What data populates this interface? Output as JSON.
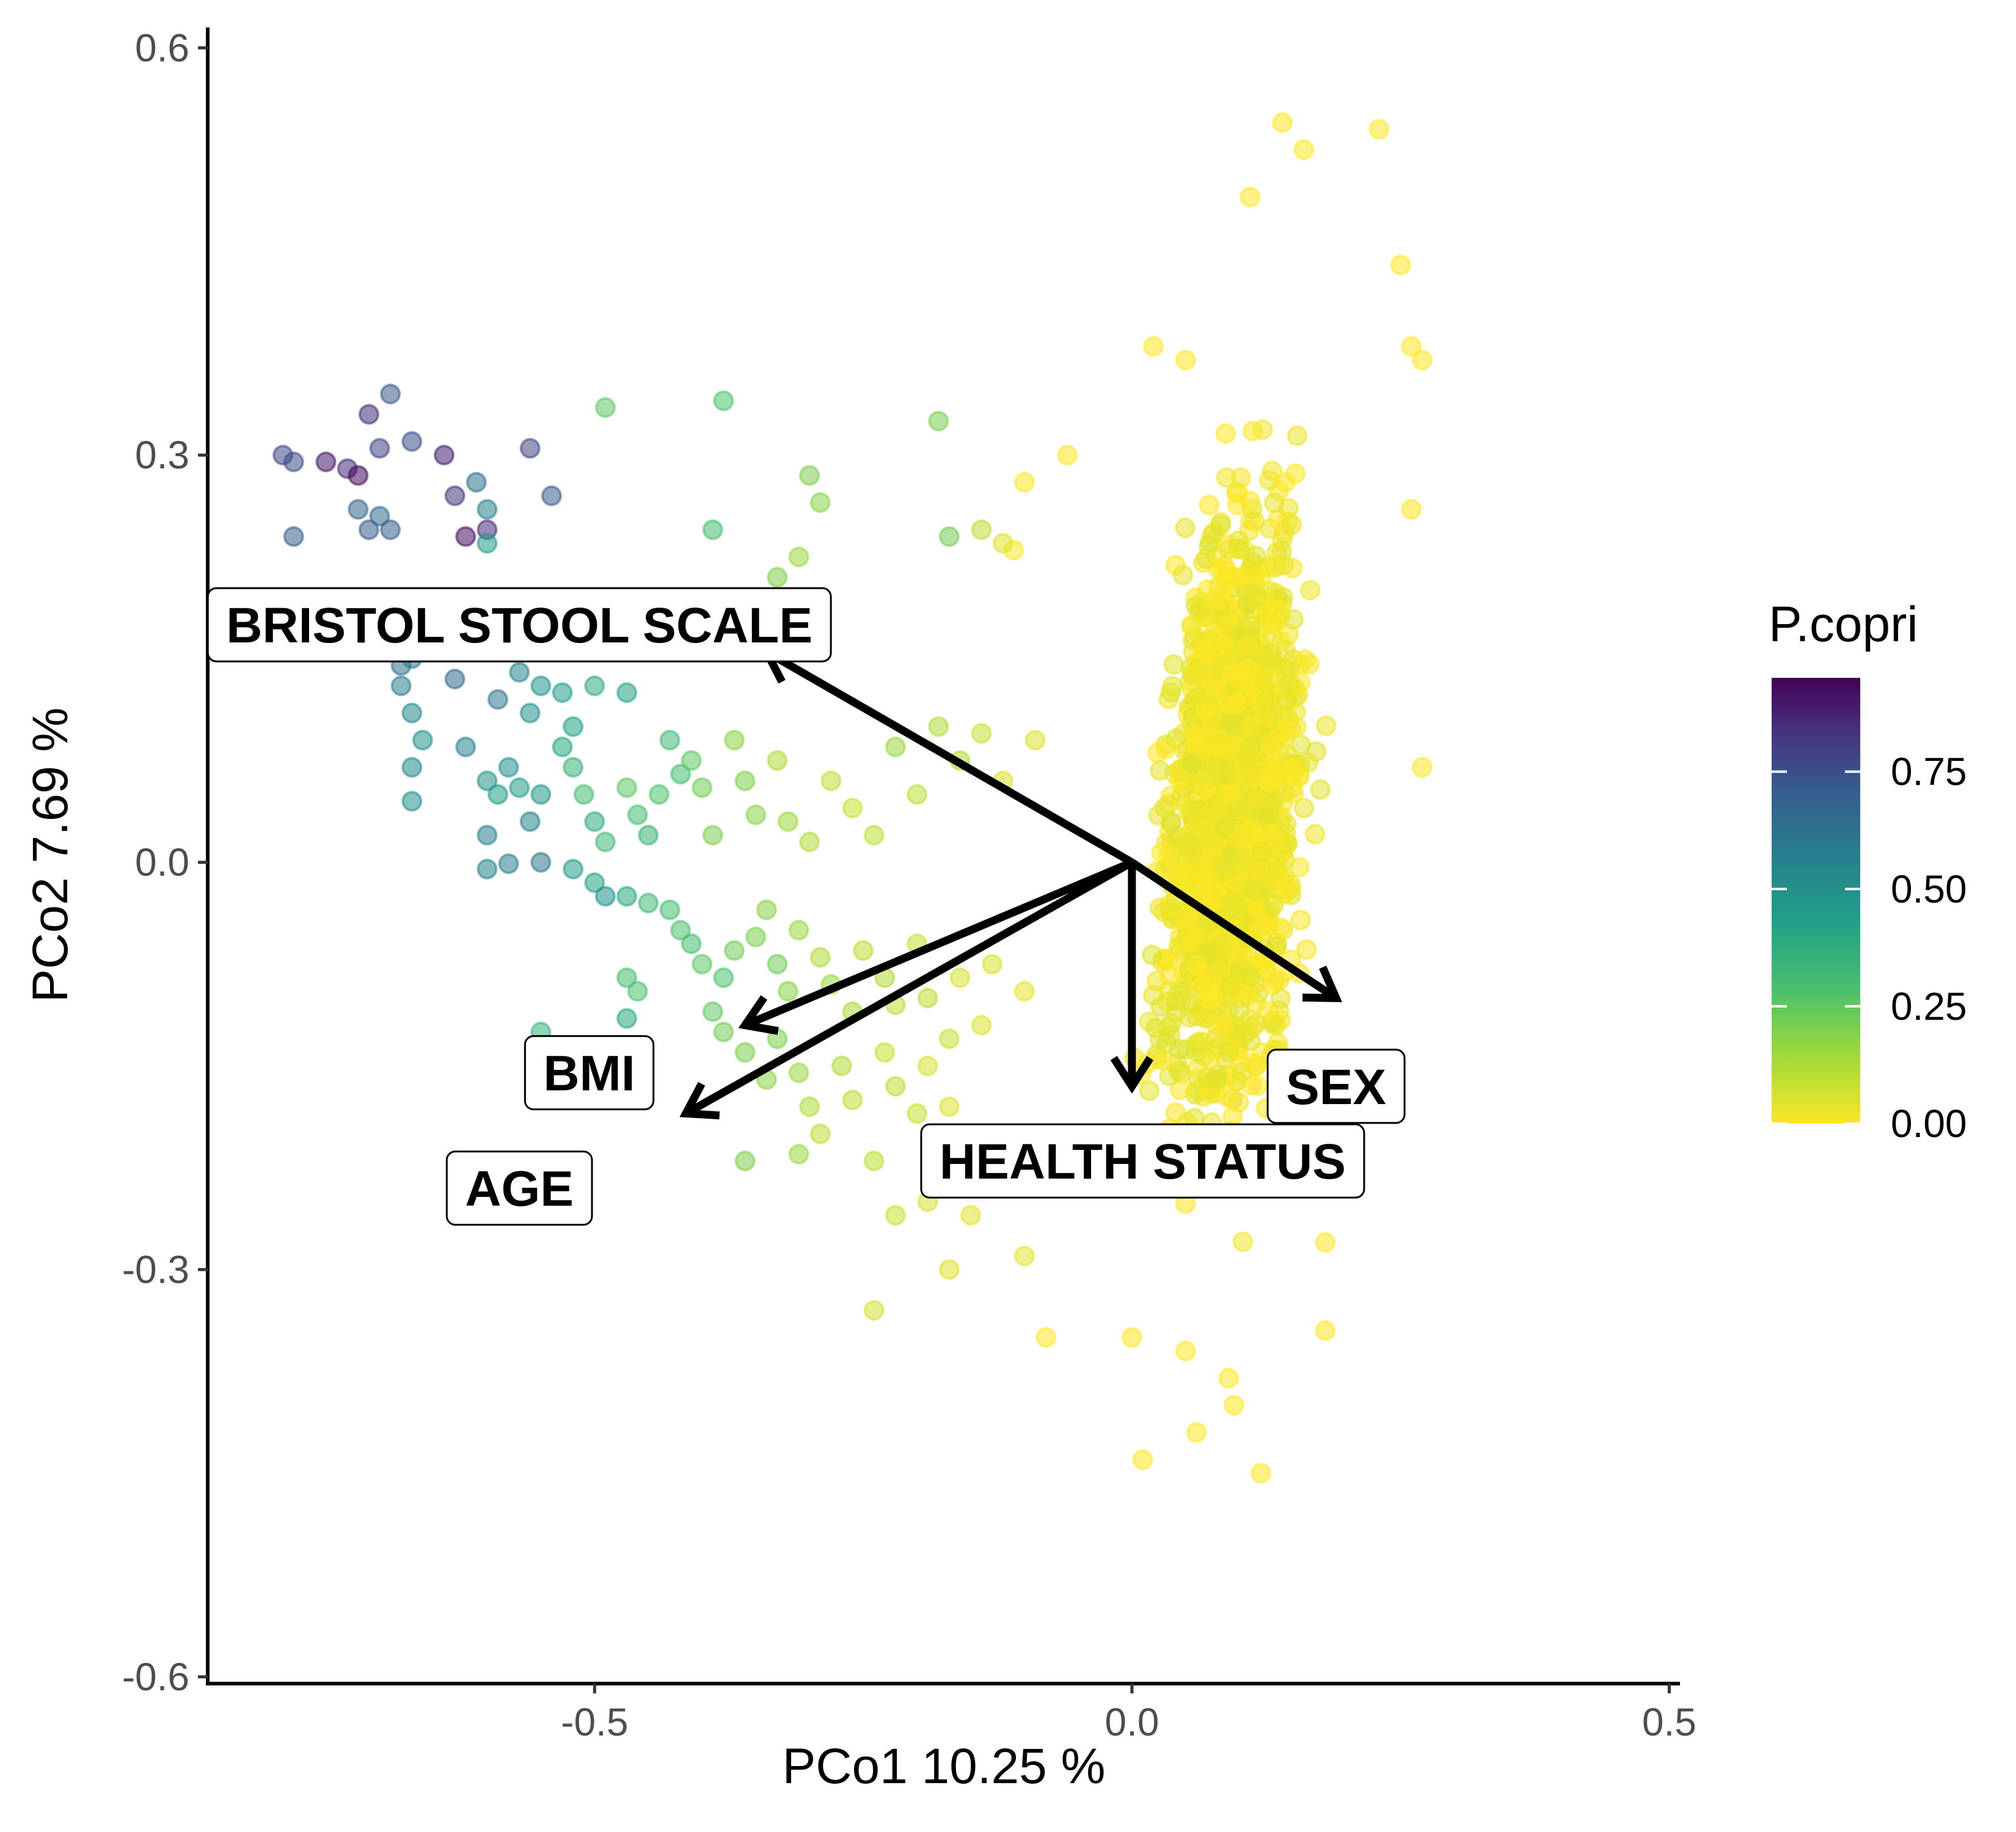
{
  "chart_data": {
    "type": "scatter",
    "title": "",
    "xlabel": "PCo1 10.25 %",
    "ylabel": "PCo2 7.69 %",
    "xlim": [
      -0.86,
      0.51
    ],
    "ylim": [
      -0.605,
      0.615
    ],
    "x_ticks": [
      {
        "value": -0.5,
        "label": "-0.5"
      },
      {
        "value": 0.0,
        "label": "0.0"
      },
      {
        "value": 0.5,
        "label": "0.5"
      }
    ],
    "y_ticks": [
      {
        "value": 0.6,
        "label": "0.6"
      },
      {
        "value": 0.3,
        "label": "0.3"
      },
      {
        "value": 0.0,
        "label": "0.0"
      },
      {
        "value": -0.3,
        "label": "-0.3"
      },
      {
        "value": -0.6,
        "label": "-0.6"
      }
    ],
    "grid": false,
    "color_scale": {
      "title": "P.copri",
      "palette": "viridis",
      "range": [
        0,
        0.95
      ],
      "ticks": [
        {
          "value": 0.0,
          "label": "0.00"
        },
        {
          "value": 0.25,
          "label": "0.25"
        },
        {
          "value": 0.5,
          "label": "0.50"
        },
        {
          "value": 0.75,
          "label": "0.75"
        }
      ],
      "legend_position": "right"
    },
    "point_style": {
      "opacity": 0.55
    },
    "biplot_arrows": [
      {
        "label": "BRISTOL STOOL SCALE",
        "x": -0.34,
        "y": 0.155
      },
      {
        "label": "SEX",
        "x": 0.19,
        "y": -0.1
      },
      {
        "label": "HEALTH STATUS",
        "x": 0.0,
        "y": -0.165
      },
      {
        "label": "BMI",
        "x": -0.36,
        "y": -0.12
      },
      {
        "label": "AGE",
        "x": -0.415,
        "y": -0.185
      }
    ],
    "points": [
      {
        "x": -0.79,
        "y": 0.3,
        "c": 0.78
      },
      {
        "x": -0.78,
        "y": 0.295,
        "c": 0.75
      },
      {
        "x": -0.75,
        "y": 0.295,
        "c": 0.9
      },
      {
        "x": -0.73,
        "y": 0.29,
        "c": 0.85
      },
      {
        "x": -0.72,
        "y": 0.285,
        "c": 0.93
      },
      {
        "x": -0.71,
        "y": 0.33,
        "c": 0.85
      },
      {
        "x": -0.7,
        "y": 0.305,
        "c": 0.78
      },
      {
        "x": -0.69,
        "y": 0.345,
        "c": 0.72
      },
      {
        "x": -0.67,
        "y": 0.31,
        "c": 0.75
      },
      {
        "x": -0.64,
        "y": 0.3,
        "c": 0.88
      },
      {
        "x": -0.61,
        "y": 0.28,
        "c": 0.62
      },
      {
        "x": -0.6,
        "y": 0.26,
        "c": 0.55
      },
      {
        "x": -0.56,
        "y": 0.305,
        "c": 0.78
      },
      {
        "x": -0.54,
        "y": 0.27,
        "c": 0.7
      },
      {
        "x": -0.72,
        "y": 0.26,
        "c": 0.68
      },
      {
        "x": -0.71,
        "y": 0.245,
        "c": 0.72
      },
      {
        "x": -0.7,
        "y": 0.255,
        "c": 0.65
      },
      {
        "x": -0.69,
        "y": 0.245,
        "c": 0.7
      },
      {
        "x": -0.78,
        "y": 0.24,
        "c": 0.7
      },
      {
        "x": -0.63,
        "y": 0.27,
        "c": 0.82
      },
      {
        "x": -0.62,
        "y": 0.24,
        "c": 0.92
      },
      {
        "x": -0.6,
        "y": 0.245,
        "c": 0.85
      },
      {
        "x": -0.6,
        "y": 0.235,
        "c": 0.45
      },
      {
        "x": -0.75,
        "y": 0.155,
        "c": 0.68
      },
      {
        "x": -0.68,
        "y": 0.145,
        "c": 0.62
      },
      {
        "x": -0.67,
        "y": 0.15,
        "c": 0.6
      },
      {
        "x": -0.68,
        "y": 0.13,
        "c": 0.58
      },
      {
        "x": -0.67,
        "y": 0.11,
        "c": 0.52
      },
      {
        "x": -0.64,
        "y": 0.155,
        "c": 0.7
      },
      {
        "x": -0.63,
        "y": 0.135,
        "c": 0.65
      },
      {
        "x": -0.6,
        "y": 0.165,
        "c": 0.78
      },
      {
        "x": -0.59,
        "y": 0.12,
        "c": 0.6
      },
      {
        "x": -0.57,
        "y": 0.14,
        "c": 0.55
      },
      {
        "x": -0.56,
        "y": 0.11,
        "c": 0.5
      },
      {
        "x": -0.55,
        "y": 0.13,
        "c": 0.48
      },
      {
        "x": -0.54,
        "y": 0.155,
        "c": 0.42
      },
      {
        "x": -0.53,
        "y": 0.125,
        "c": 0.45
      },
      {
        "x": -0.52,
        "y": 0.1,
        "c": 0.42
      },
      {
        "x": -0.51,
        "y": 0.16,
        "c": 0.4
      },
      {
        "x": -0.5,
        "y": 0.13,
        "c": 0.38
      },
      {
        "x": -0.48,
        "y": 0.155,
        "c": 0.35
      },
      {
        "x": -0.47,
        "y": 0.125,
        "c": 0.42
      },
      {
        "x": -0.49,
        "y": 0.335,
        "c": 0.25
      },
      {
        "x": -0.38,
        "y": 0.34,
        "c": 0.28
      },
      {
        "x": -0.3,
        "y": 0.285,
        "c": 0.2
      },
      {
        "x": -0.29,
        "y": 0.265,
        "c": 0.18
      },
      {
        "x": -0.39,
        "y": 0.245,
        "c": 0.3
      },
      {
        "x": -0.18,
        "y": 0.325,
        "c": 0.2
      },
      {
        "x": -0.17,
        "y": 0.24,
        "c": 0.22
      },
      {
        "x": -0.14,
        "y": 0.245,
        "c": 0.1
      },
      {
        "x": -0.12,
        "y": 0.235,
        "c": 0.05
      },
      {
        "x": -0.33,
        "y": 0.21,
        "c": 0.2
      },
      {
        "x": -0.31,
        "y": 0.225,
        "c": 0.15
      },
      {
        "x": -0.66,
        "y": 0.09,
        "c": 0.48
      },
      {
        "x": -0.67,
        "y": 0.07,
        "c": 0.52
      },
      {
        "x": -0.67,
        "y": 0.045,
        "c": 0.5
      },
      {
        "x": -0.62,
        "y": 0.085,
        "c": 0.55
      },
      {
        "x": -0.6,
        "y": 0.06,
        "c": 0.48
      },
      {
        "x": -0.59,
        "y": 0.05,
        "c": 0.45
      },
      {
        "x": -0.58,
        "y": 0.07,
        "c": 0.5
      },
      {
        "x": -0.57,
        "y": 0.055,
        "c": 0.45
      },
      {
        "x": -0.56,
        "y": 0.03,
        "c": 0.55
      },
      {
        "x": -0.55,
        "y": 0.05,
        "c": 0.48
      },
      {
        "x": -0.53,
        "y": 0.085,
        "c": 0.4
      },
      {
        "x": -0.52,
        "y": 0.07,
        "c": 0.35
      },
      {
        "x": -0.51,
        "y": 0.05,
        "c": 0.3
      },
      {
        "x": -0.5,
        "y": 0.03,
        "c": 0.38
      },
      {
        "x": -0.49,
        "y": 0.015,
        "c": 0.32
      },
      {
        "x": -0.47,
        "y": 0.055,
        "c": 0.25
      },
      {
        "x": -0.46,
        "y": 0.035,
        "c": 0.3
      },
      {
        "x": -0.45,
        "y": 0.02,
        "c": 0.35
      },
      {
        "x": -0.44,
        "y": 0.05,
        "c": 0.28
      },
      {
        "x": -0.43,
        "y": 0.09,
        "c": 0.32
      },
      {
        "x": -0.42,
        "y": 0.065,
        "c": 0.3
      },
      {
        "x": -0.41,
        "y": 0.075,
        "c": 0.25
      },
      {
        "x": -0.4,
        "y": 0.055,
        "c": 0.22
      },
      {
        "x": -0.39,
        "y": 0.02,
        "c": 0.2
      },
      {
        "x": -0.37,
        "y": 0.09,
        "c": 0.18
      },
      {
        "x": -0.36,
        "y": 0.06,
        "c": 0.2
      },
      {
        "x": -0.35,
        "y": 0.035,
        "c": 0.18
      },
      {
        "x": -0.33,
        "y": 0.075,
        "c": 0.12
      },
      {
        "x": -0.32,
        "y": 0.03,
        "c": 0.15
      },
      {
        "x": -0.3,
        "y": 0.015,
        "c": 0.12
      },
      {
        "x": -0.28,
        "y": 0.06,
        "c": 0.1
      },
      {
        "x": -0.26,
        "y": 0.04,
        "c": 0.08
      },
      {
        "x": -0.24,
        "y": 0.02,
        "c": 0.1
      },
      {
        "x": -0.22,
        "y": 0.085,
        "c": 0.15
      },
      {
        "x": -0.2,
        "y": 0.05,
        "c": 0.1
      },
      {
        "x": -0.18,
        "y": 0.1,
        "c": 0.12
      },
      {
        "x": -0.16,
        "y": 0.075,
        "c": 0.12
      },
      {
        "x": -0.14,
        "y": 0.095,
        "c": 0.08
      },
      {
        "x": -0.12,
        "y": 0.06,
        "c": 0.05
      },
      {
        "x": -0.09,
        "y": 0.09,
        "c": 0.05
      },
      {
        "x": -0.6,
        "y": 0.02,
        "c": 0.55
      },
      {
        "x": -0.6,
        "y": -0.005,
        "c": 0.55
      },
      {
        "x": -0.58,
        "y": -0.001,
        "c": 0.58
      },
      {
        "x": -0.55,
        "y": 0.0,
        "c": 0.6
      },
      {
        "x": -0.52,
        "y": -0.005,
        "c": 0.45
      },
      {
        "x": -0.5,
        "y": -0.015,
        "c": 0.42
      },
      {
        "x": -0.49,
        "y": -0.025,
        "c": 0.5
      },
      {
        "x": -0.47,
        "y": -0.025,
        "c": 0.4
      },
      {
        "x": -0.45,
        "y": -0.03,
        "c": 0.32
      },
      {
        "x": -0.43,
        "y": -0.035,
        "c": 0.3
      },
      {
        "x": -0.42,
        "y": -0.05,
        "c": 0.28
      },
      {
        "x": -0.41,
        "y": -0.06,
        "c": 0.3
      },
      {
        "x": -0.4,
        "y": -0.075,
        "c": 0.25
      },
      {
        "x": -0.38,
        "y": -0.085,
        "c": 0.28
      },
      {
        "x": -0.37,
        "y": -0.065,
        "c": 0.22
      },
      {
        "x": -0.35,
        "y": -0.055,
        "c": 0.2
      },
      {
        "x": -0.34,
        "y": -0.035,
        "c": 0.18
      },
      {
        "x": -0.33,
        "y": -0.075,
        "c": 0.22
      },
      {
        "x": -0.32,
        "y": -0.095,
        "c": 0.18
      },
      {
        "x": -0.31,
        "y": -0.05,
        "c": 0.15
      },
      {
        "x": -0.29,
        "y": -0.07,
        "c": 0.12
      },
      {
        "x": -0.28,
        "y": -0.09,
        "c": 0.15
      },
      {
        "x": -0.26,
        "y": -0.11,
        "c": 0.12
      },
      {
        "x": -0.25,
        "y": -0.065,
        "c": 0.1
      },
      {
        "x": -0.23,
        "y": -0.085,
        "c": 0.12
      },
      {
        "x": -0.22,
        "y": -0.105,
        "c": 0.1
      },
      {
        "x": -0.2,
        "y": -0.06,
        "c": 0.08
      },
      {
        "x": -0.19,
        "y": -0.1,
        "c": 0.1
      },
      {
        "x": -0.17,
        "y": -0.13,
        "c": 0.08
      },
      {
        "x": -0.16,
        "y": -0.085,
        "c": 0.06
      },
      {
        "x": -0.14,
        "y": -0.12,
        "c": 0.05
      },
      {
        "x": -0.13,
        "y": -0.075,
        "c": 0.06
      },
      {
        "x": -0.1,
        "y": -0.095,
        "c": 0.04
      },
      {
        "x": -0.47,
        "y": -0.085,
        "c": 0.3
      },
      {
        "x": -0.46,
        "y": -0.095,
        "c": 0.28
      },
      {
        "x": -0.47,
        "y": -0.115,
        "c": 0.4
      },
      {
        "x": -0.55,
        "y": -0.125,
        "c": 0.35
      },
      {
        "x": -0.39,
        "y": -0.11,
        "c": 0.25
      },
      {
        "x": -0.38,
        "y": -0.125,
        "c": 0.22
      },
      {
        "x": -0.36,
        "y": -0.14,
        "c": 0.2
      },
      {
        "x": -0.34,
        "y": -0.16,
        "c": 0.18
      },
      {
        "x": -0.33,
        "y": -0.13,
        "c": 0.2
      },
      {
        "x": -0.31,
        "y": -0.155,
        "c": 0.15
      },
      {
        "x": -0.3,
        "y": -0.18,
        "c": 0.12
      },
      {
        "x": -0.29,
        "y": -0.2,
        "c": 0.1
      },
      {
        "x": -0.27,
        "y": -0.15,
        "c": 0.12
      },
      {
        "x": -0.26,
        "y": -0.175,
        "c": 0.1
      },
      {
        "x": -0.23,
        "y": -0.14,
        "c": 0.08
      },
      {
        "x": -0.22,
        "y": -0.165,
        "c": 0.1
      },
      {
        "x": -0.2,
        "y": -0.185,
        "c": 0.08
      },
      {
        "x": -0.19,
        "y": -0.15,
        "c": 0.06
      },
      {
        "x": -0.17,
        "y": -0.18,
        "c": 0.05
      },
      {
        "x": -0.36,
        "y": -0.22,
        "c": 0.2
      },
      {
        "x": -0.31,
        "y": -0.215,
        "c": 0.15
      },
      {
        "x": -0.24,
        "y": -0.22,
        "c": 0.1
      },
      {
        "x": -0.22,
        "y": -0.26,
        "c": 0.08
      },
      {
        "x": -0.19,
        "y": -0.25,
        "c": 0.06
      },
      {
        "x": -0.17,
        "y": -0.3,
        "c": 0.05
      },
      {
        "x": -0.24,
        "y": -0.33,
        "c": 0.07
      },
      {
        "x": -0.15,
        "y": -0.26,
        "c": 0.04
      },
      {
        "x": -0.12,
        "y": -0.24,
        "c": 0.03
      },
      {
        "x": -0.1,
        "y": -0.29,
        "c": 0.04
      }
    ],
    "dense_cluster": {
      "color_value": 0.0,
      "x_range": [
        -0.12,
        0.27
      ],
      "y_range": [
        -0.45,
        0.54
      ],
      "outliers": [
        {
          "x": 0.14,
          "y": 0.545
        },
        {
          "x": 0.16,
          "y": 0.525
        },
        {
          "x": 0.23,
          "y": 0.54
        },
        {
          "x": 0.11,
          "y": 0.49
        },
        {
          "x": 0.25,
          "y": 0.44
        },
        {
          "x": 0.27,
          "y": 0.37
        },
        {
          "x": 0.26,
          "y": 0.38
        },
        {
          "x": 0.26,
          "y": 0.26
        },
        {
          "x": 0.27,
          "y": 0.07
        },
        {
          "x": 0.18,
          "y": -0.345
        },
        {
          "x": 0.09,
          "y": -0.38
        },
        {
          "x": 0.095,
          "y": -0.4
        },
        {
          "x": 0.06,
          "y": -0.42
        },
        {
          "x": 0.01,
          "y": -0.44
        },
        {
          "x": 0.12,
          "y": -0.45
        },
        {
          "x": -0.08,
          "y": -0.35
        },
        {
          "x": 0.0,
          "y": -0.35
        },
        {
          "x": 0.05,
          "y": -0.36
        },
        {
          "x": -0.1,
          "y": 0.28
        },
        {
          "x": -0.11,
          "y": 0.23
        },
        {
          "x": -0.06,
          "y": 0.3
        },
        {
          "x": 0.02,
          "y": 0.38
        },
        {
          "x": 0.05,
          "y": 0.37
        },
        {
          "x": 0.18,
          "y": -0.28
        }
      ]
    }
  }
}
